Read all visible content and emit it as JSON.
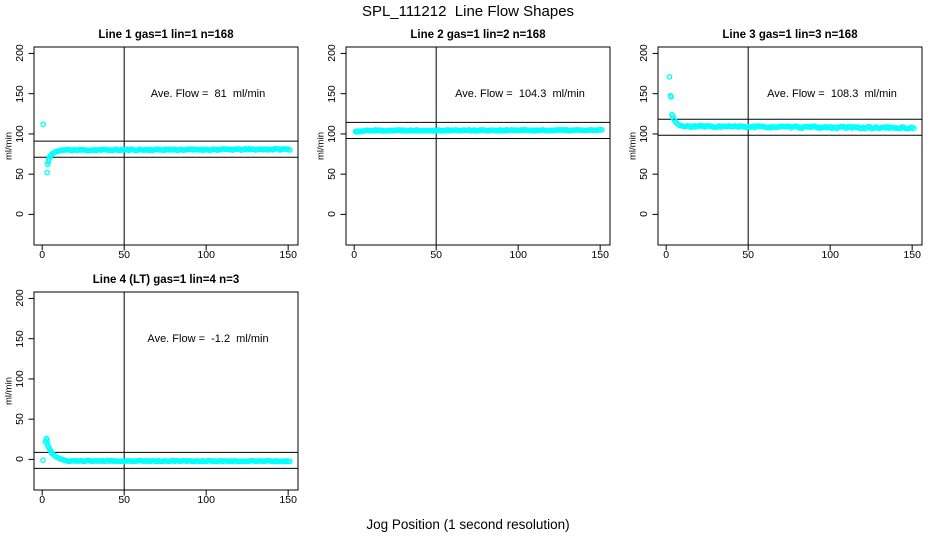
{
  "window": {
    "main_title": "SPL_111212  Line Flow Shapes",
    "bottom_axis_label": "Jog Position (1 second resolution)"
  },
  "chart_data": {
    "type": "scatter",
    "point_color": "#00ffff",
    "point_style": "open-circle",
    "axis_color": "#000000",
    "shared_ylabel": "ml/min",
    "shared_xlabel": "Jog Position (1 second resolution)",
    "x_ticks": [
      0,
      50,
      100,
      150
    ],
    "y_ticks": [
      0,
      50,
      100,
      150,
      200
    ],
    "xlim": [
      -5,
      156
    ],
    "ylim": [
      -38,
      208
    ],
    "grid": false,
    "marker_vline_x": 50,
    "panels": [
      {
        "title": "Line 1 gas=1 lin=1 n=168",
        "annotation": "Ave. Flow =  81  ml/min",
        "ave_flow": 81,
        "ref_lines": [
          91,
          71
        ],
        "grid_pos": [
          0,
          0
        ],
        "head_points": [
          [
            0.6,
            112
          ],
          [
            3,
            52
          ],
          [
            3.3,
            62
          ],
          [
            3.6,
            65
          ],
          [
            4,
            68
          ],
          [
            4.5,
            70.5
          ],
          [
            5,
            72.5
          ],
          [
            5.5,
            74
          ],
          [
            6,
            75
          ],
          [
            7,
            76.5
          ],
          [
            8,
            77.5
          ],
          [
            9,
            78.2
          ],
          [
            10,
            78.8
          ],
          [
            11,
            79.3
          ]
        ],
        "tail": {
          "x_from": 12,
          "x_to": 151,
          "step": 1,
          "y_start": 79.9,
          "y_end": 80.9,
          "jitter": 0.85,
          "seed": 11
        }
      },
      {
        "title": "Line 2 gas=1 lin=2 n=168",
        "annotation": "Ave. Flow =  104.3  ml/min",
        "ave_flow": 104.3,
        "ref_lines": [
          114.3,
          94.3
        ],
        "grid_pos": [
          0,
          1
        ],
        "head_points": [
          [
            0.8,
            103
          ],
          [
            1.5,
            102.5
          ],
          [
            2,
            103.5
          ],
          [
            3,
            102.8
          ],
          [
            4,
            103.5
          ],
          [
            5,
            103
          ],
          [
            6,
            104
          ],
          [
            7,
            104.2
          ]
        ],
        "tail": {
          "x_from": 8,
          "x_to": 151,
          "step": 1,
          "y_start": 104.4,
          "y_end": 104.6,
          "jitter": 0.8,
          "seed": 22
        }
      },
      {
        "title": "Line 3 gas=1 lin=3 n=168",
        "annotation": "Ave. Flow =  108.3  ml/min",
        "ave_flow": 108.3,
        "ref_lines": [
          118.3,
          98.3
        ],
        "grid_pos": [
          0,
          2
        ],
        "head_points": [
          [
            2,
            171
          ],
          [
            2.6,
            147.5
          ],
          [
            3,
            146
          ],
          [
            3.5,
            124
          ],
          [
            4,
            122
          ],
          [
            4.5,
            119
          ],
          [
            5,
            117
          ],
          [
            6,
            114.5
          ],
          [
            7,
            112.5
          ],
          [
            8,
            111
          ],
          [
            9,
            110.3
          ],
          [
            10,
            109.7
          ],
          [
            11,
            109.2
          ]
        ],
        "tail": {
          "x_from": 12,
          "x_to": 151,
          "step": 1,
          "y_start": 109.4,
          "y_end": 107.4,
          "jitter": 1.15,
          "seed": 33
        }
      },
      {
        "title": "Line 4 (LT) gas=1 lin=4 n=3",
        "annotation": "Ave. Flow =  -1.2  ml/min",
        "ave_flow": -1.2,
        "ref_lines": [
          8.8,
          -11.2
        ],
        "grid_pos": [
          1,
          0
        ],
        "head_points": [
          [
            0.5,
            -1
          ],
          [
            2,
            22
          ],
          [
            2.5,
            26
          ],
          [
            3,
            24
          ],
          [
            3,
            20
          ],
          [
            3.5,
            17
          ],
          [
            4,
            15
          ],
          [
            4.5,
            13
          ],
          [
            5,
            11
          ],
          [
            5.5,
            9
          ],
          [
            6,
            7.5
          ],
          [
            7,
            5.5
          ],
          [
            8,
            4
          ],
          [
            9,
            2.8
          ],
          [
            10,
            1.8
          ],
          [
            11,
            0.8
          ],
          [
            12,
            0
          ],
          [
            13,
            -0.7
          ],
          [
            14,
            -1.3
          ]
        ],
        "tail": {
          "x_from": 15,
          "x_to": 151,
          "step": 1,
          "y_start": -1.9,
          "y_end": -2.2,
          "jitter": 0.6,
          "seed": 44
        }
      }
    ]
  }
}
